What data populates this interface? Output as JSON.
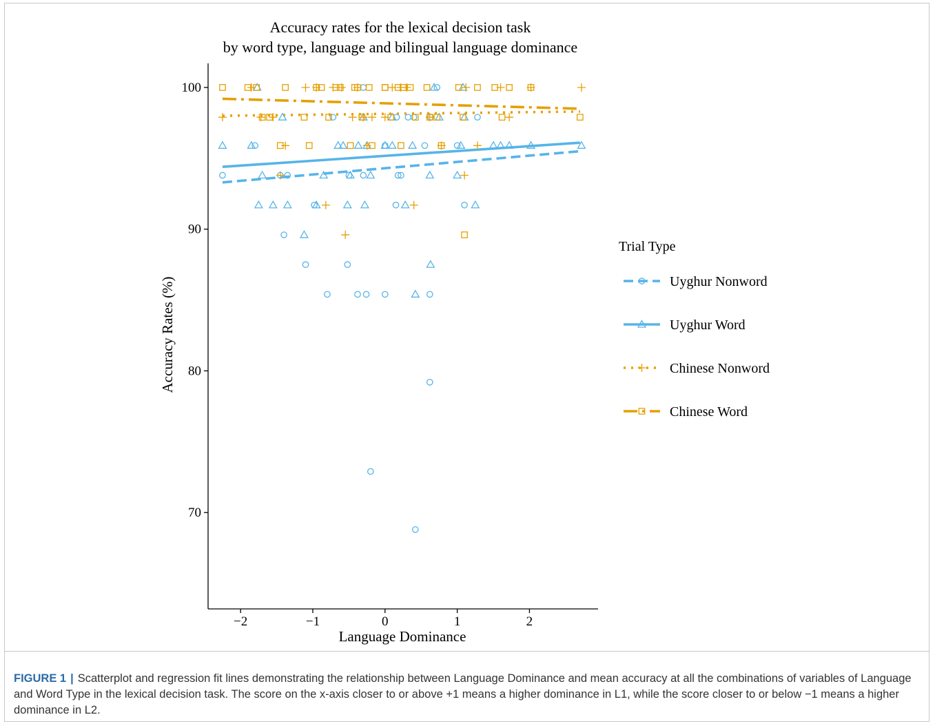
{
  "chart_data": {
    "type": "scatter",
    "title": "Accuracy rates for the lexical decision task",
    "subtitle": "by word type, language and bilingual language dominance",
    "xlabel": "Language Dominance",
    "ylabel": "Accuracy Rates (%)",
    "xlim": [
      -2.45,
      2.95
    ],
    "ylim": [
      63.2,
      101.7
    ],
    "x_ticks": [
      -2,
      -1,
      0,
      1,
      2
    ],
    "x_tick_labels": [
      "−2",
      "−1",
      "0",
      "1",
      "2"
    ],
    "y_ticks": [
      70,
      80,
      90,
      100
    ],
    "y_tick_labels": [
      "70",
      "80",
      "90",
      "100"
    ],
    "grid": false,
    "legend_title": "Trial Type",
    "legend_position": "right",
    "series": [
      {
        "name": "Uyghur Nonword",
        "color": "#56B4E9",
        "marker": "circle",
        "line_style": "dashed",
        "fit": {
          "x": [
            -2.25,
            2.7
          ],
          "y": [
            93.3,
            95.5
          ]
        },
        "x": [
          -2.25,
          -1.8,
          -1.45,
          -1.35,
          -1.4,
          -0.98,
          -1.1,
          -0.8,
          -0.72,
          -0.52,
          -0.38,
          -0.3,
          -0.26,
          -0.2,
          0.15,
          0.18,
          0.0,
          0.16,
          0.22,
          0.32,
          0.42,
          0.55,
          0.62,
          0.62,
          0.63,
          0.72,
          1.1,
          1.28,
          -0.5,
          0.0,
          0.4,
          -0.3,
          1.0
        ],
        "y": [
          93.8,
          95.9,
          93.8,
          93.8,
          89.6,
          91.7,
          87.5,
          85.4,
          97.9,
          87.5,
          85.4,
          93.8,
          85.4,
          72.9,
          91.7,
          93.8,
          85.4,
          97.9,
          93.8,
          97.9,
          68.8,
          95.9,
          79.2,
          85.4,
          97.9,
          100,
          91.7,
          97.9,
          93.8,
          95.9,
          97.9,
          100,
          95.9
        ]
      },
      {
        "name": "Uyghur Word",
        "color": "#56B4E9",
        "marker": "triangle",
        "line_style": "solid",
        "fit": {
          "x": [
            -2.25,
            2.7
          ],
          "y": [
            94.4,
            96.1
          ]
        },
        "x": [
          -2.25,
          -1.85,
          -1.75,
          -1.7,
          -1.55,
          -1.42,
          -1.35,
          -1.12,
          -0.95,
          -0.85,
          -0.65,
          -0.58,
          -0.52,
          -0.48,
          -0.37,
          -0.28,
          -0.25,
          -0.2,
          0.0,
          0.1,
          0.28,
          0.38,
          0.42,
          0.62,
          0.63,
          0.75,
          1.0,
          1.05,
          1.1,
          1.25,
          1.5,
          1.6,
          1.72,
          2.02,
          2.72,
          -1.77,
          -0.3,
          0.1,
          0.68,
          1.08
        ],
        "y": [
          95.9,
          95.9,
          91.7,
          93.8,
          91.7,
          97.9,
          91.7,
          89.6,
          91.7,
          93.8,
          95.9,
          95.9,
          91.7,
          93.8,
          95.9,
          91.7,
          95.9,
          93.8,
          95.9,
          95.9,
          91.7,
          95.9,
          85.4,
          93.8,
          87.5,
          97.9,
          93.8,
          95.9,
          97.9,
          91.7,
          95.9,
          95.9,
          95.9,
          95.9,
          95.9,
          100,
          97.9,
          97.9,
          100,
          100
        ]
      },
      {
        "name": "Chinese Nonword",
        "color": "#E69F00",
        "marker": "plus",
        "line_style": "dotted",
        "fit": {
          "x": [
            -2.25,
            2.7
          ],
          "y": [
            98.0,
            98.3
          ]
        },
        "x": [
          -2.25,
          -1.85,
          -1.72,
          -1.55,
          -1.45,
          -1.38,
          -1.1,
          -0.95,
          -0.82,
          -0.72,
          -0.55,
          -0.45,
          -0.38,
          -0.25,
          -0.18,
          0.0,
          0.1,
          0.22,
          0.4,
          0.62,
          0.78,
          1.1,
          1.12,
          1.28,
          1.72,
          2.02,
          2.72,
          -0.6,
          0.3,
          -0.3,
          1.6
        ],
        "y": [
          97.9,
          100,
          97.9,
          97.9,
          93.8,
          95.9,
          100,
          100,
          91.7,
          100,
          89.6,
          97.9,
          100,
          95.9,
          97.9,
          97.9,
          100,
          100,
          91.7,
          97.9,
          95.9,
          93.8,
          100,
          95.9,
          97.9,
          100,
          100,
          100,
          100,
          97.9,
          100
        ]
      },
      {
        "name": "Chinese Word",
        "color": "#E69F00",
        "marker": "square",
        "line_style": "dotdash",
        "fit": {
          "x": [
            -2.25,
            2.7
          ],
          "y": [
            99.2,
            98.5
          ]
        },
        "x": [
          -2.25,
          -1.9,
          -1.78,
          -1.7,
          -1.6,
          -1.45,
          -1.38,
          -1.12,
          -1.05,
          -0.88,
          -0.78,
          -0.68,
          -0.62,
          -0.48,
          -0.38,
          -0.32,
          -0.22,
          -0.18,
          0.0,
          0.08,
          0.18,
          0.22,
          0.35,
          0.42,
          0.58,
          0.62,
          0.72,
          0.78,
          1.02,
          1.08,
          1.1,
          1.28,
          1.52,
          1.62,
          1.72,
          2.02,
          2.7,
          -0.95,
          0.0,
          0.25,
          -0.42
        ],
        "y": [
          100,
          100,
          100,
          97.9,
          97.9,
          95.9,
          100,
          97.9,
          95.9,
          100,
          97.9,
          100,
          100,
          95.9,
          100,
          97.9,
          100,
          95.9,
          100,
          97.9,
          100,
          95.9,
          100,
          97.9,
          100,
          97.9,
          97.9,
          95.9,
          100,
          97.9,
          89.6,
          100,
          100,
          97.9,
          100,
          100,
          97.9,
          100,
          100,
          100,
          100
        ]
      }
    ]
  },
  "caption": {
    "label": "FIGURE 1",
    "separator": "|",
    "text": "Scatterplot and regression fit lines demonstrating the relationship between Language Dominance and mean accuracy at all the combinations of variables of Language and Word Type in the lexical decision task. The score on the x-axis closer to or above +1 means a higher dominance in L1, while the score closer to or below −1 means a higher dominance in L2."
  }
}
